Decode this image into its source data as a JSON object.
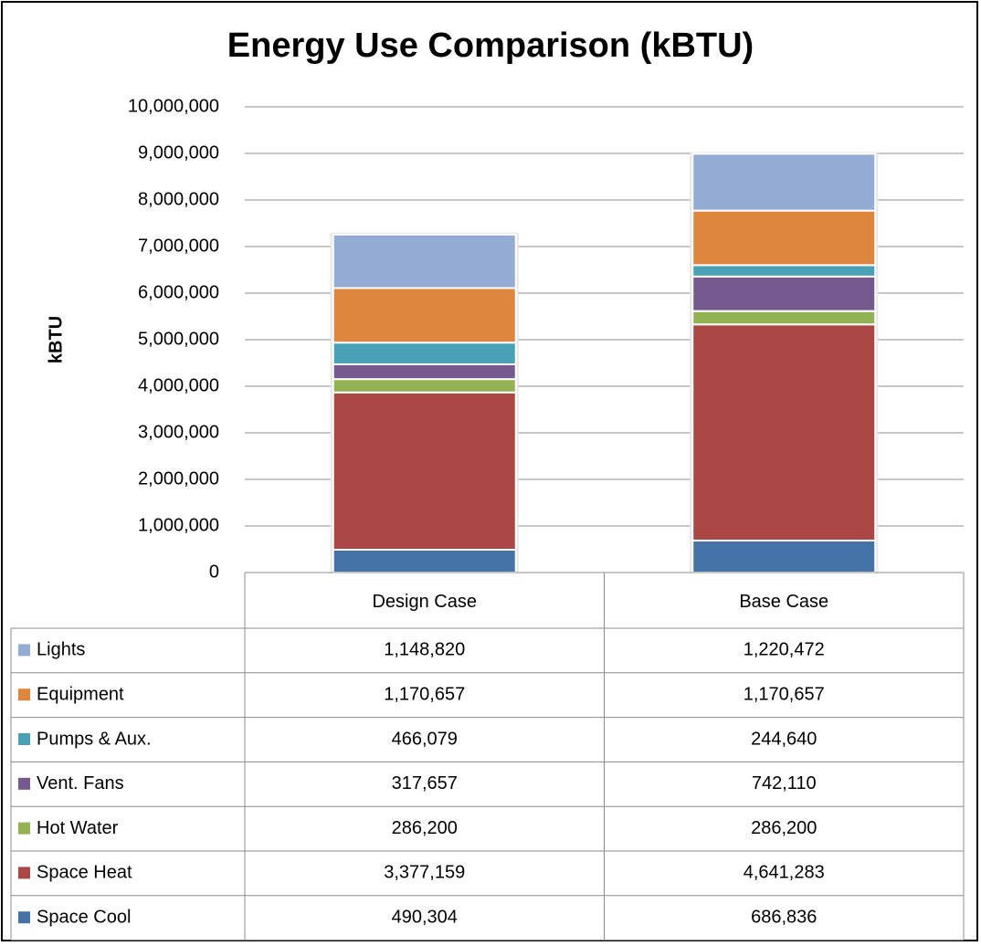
{
  "chart_data": {
    "type": "stacked_bar",
    "title": "Energy Use Comparison (kBTU)",
    "y_label": "kBTU",
    "categories": [
      "Design Case",
      "Base Case"
    ],
    "series": [
      {
        "name": "Space Cool",
        "color": "#4572a7",
        "values": [
          490304,
          686836
        ],
        "value_labels": [
          "490,304",
          "686,836"
        ]
      },
      {
        "name": "Space Heat",
        "color": "#aa4643",
        "values": [
          3377159,
          4641283
        ],
        "value_labels": [
          "3,377,159",
          "4,641,283"
        ]
      },
      {
        "name": "Hot Water",
        "color": "#93b254",
        "values": [
          286200,
          286200
        ],
        "value_labels": [
          "286,200",
          "286,200"
        ]
      },
      {
        "name": "Vent. Fans",
        "color": "#76598f",
        "values": [
          317657,
          742110
        ],
        "value_labels": [
          "317,657",
          "742,110"
        ]
      },
      {
        "name": "Pumps & Aux.",
        "color": "#4aa0b5",
        "values": [
          466079,
          244640
        ],
        "value_labels": [
          "466,079",
          "244,640"
        ]
      },
      {
        "name": "Equipment",
        "color": "#de853e",
        "values": [
          1170657,
          1170657
        ],
        "value_labels": [
          "1,170,657",
          "1,170,657"
        ]
      },
      {
        "name": "Lights",
        "color": "#94abd3",
        "values": [
          1148820,
          1220472
        ],
        "value_labels": [
          "1,148,820",
          "1,220,472"
        ]
      }
    ],
    "ylim": [
      0,
      10000000
    ],
    "yticks": [
      0,
      {
        "value": 1000000,
        "label": "1,000,000"
      },
      {
        "value": 2000000,
        "label": "2,000,000"
      },
      {
        "value": 3000000,
        "label": "3,000,000"
      },
      {
        "value": 4000000,
        "label": "4,000,000"
      },
      {
        "value": 5000000,
        "label": "5,000,000"
      },
      {
        "value": 6000000,
        "label": "6,000,000"
      },
      {
        "value": 7000000,
        "label": "7,000,000"
      },
      {
        "value": 8000000,
        "label": "8,000,000"
      },
      {
        "value": 9000000,
        "label": "9,000,000"
      },
      {
        "value": 10000000,
        "label": "10,000,000"
      }
    ],
    "grid": true
  }
}
